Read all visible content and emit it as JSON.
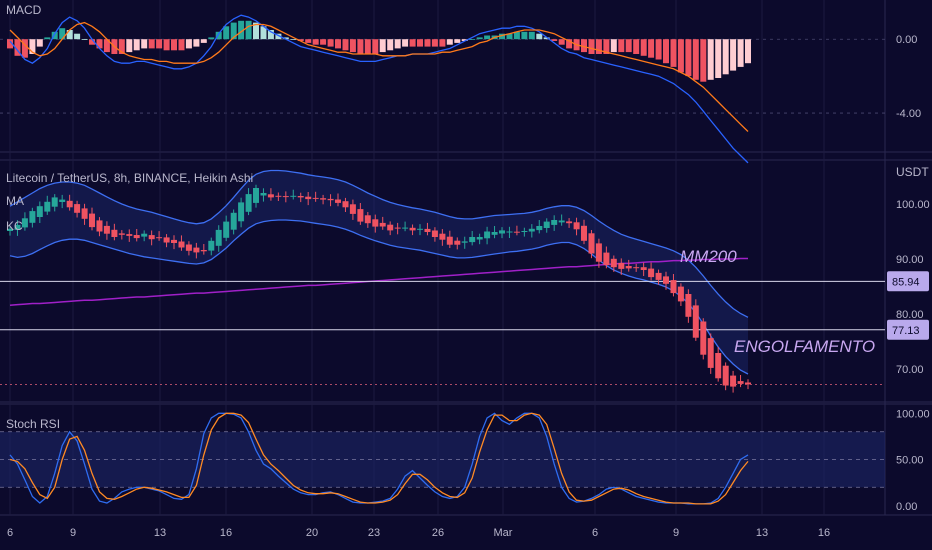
{
  "colors": {
    "background": "#0c0a2c",
    "up": "#26a69a",
    "down": "#ef5361",
    "macd_line": "#2962ff",
    "signal_line": "#ff7a1a",
    "ma200": "#a020c8",
    "keltner": "#3d6ff2",
    "stoch_k": "#2f6cf0",
    "stoch_d": "#ff8a24",
    "annotation": "#c8a7f0",
    "level_label_bg": "#b9a9ec"
  },
  "chart_data": {
    "type": "candlestick",
    "title": "Litecoin / TetherUS, 8h, BINANCE, Heikin Ashi",
    "currency": "USDT",
    "x_ticks": [
      "6",
      "9",
      "13",
      "16",
      "20",
      "23",
      "26",
      "Mar",
      "6",
      "9",
      "13",
      "16"
    ],
    "price_axis": {
      "ticks": [
        100.0,
        90.0,
        80.0,
        70.0
      ],
      "tick_labels": [
        "100.00",
        "90.00",
        "80.00",
        "70.00"
      ],
      "range": [
        64,
        108
      ]
    },
    "indicators_labels": [
      "MA",
      "KC"
    ],
    "horizontal_levels": [
      {
        "value": 85.94,
        "label": "85.94"
      },
      {
        "value": 77.13,
        "label": "77.13"
      }
    ],
    "annotations": [
      "MM200",
      "ENGOLFAMENTO"
    ],
    "candles_close": [
      95.5,
      96.2,
      97.4,
      98.7,
      99.6,
      100.4,
      101.2,
      100.8,
      99.4,
      98.4,
      97.3,
      95.8,
      95.0,
      94.6,
      94.0,
      94.4,
      94.2,
      93.8,
      94.6,
      93.6,
      93.9,
      93.0,
      92.9,
      92.1,
      91.5,
      91.2,
      91.4,
      93.3,
      95.3,
      96.8,
      98.4,
      100.3,
      101.8,
      102.9,
      102.0,
      101.2,
      101.4,
      101.4,
      101.5,
      101.2,
      100.9,
      101.0,
      100.8,
      100.7,
      100.2,
      99.4,
      98.2,
      96.8,
      96.5,
      95.9,
      95.9,
      95.2,
      95.6,
      95.7,
      95.2,
      95.5,
      94.9,
      94.0,
      93.5,
      92.6,
      92.6,
      93.2,
      94.0,
      94.0,
      95.0,
      94.9,
      95.2,
      95.0,
      94.9,
      95.1,
      95.5,
      96.0,
      96.8,
      97.1,
      97.0,
      96.5,
      95.4,
      93.3,
      91.0,
      89.5,
      88.9,
      88.5,
      88.2,
      88.3,
      88.5,
      88.0,
      86.7,
      86.2,
      85.5,
      83.8,
      82.3,
      79.5,
      75.7,
      72.6,
      70.2,
      68.3,
      67.0,
      66.8,
      67.3,
      67.2
    ],
    "keltner_upper": [
      99.6,
      100.4,
      101.2,
      102.0,
      102.8,
      103.4,
      103.8,
      104.0,
      104.0,
      103.8,
      103.4,
      102.7,
      102.0,
      101.3,
      100.6,
      100.0,
      99.5,
      99.1,
      98.8,
      98.5,
      98.1,
      97.7,
      97.3,
      96.9,
      96.6,
      96.4,
      96.6,
      97.3,
      98.4,
      99.7,
      101.2,
      102.8,
      104.3,
      105.4,
      105.9,
      106.1,
      106.1,
      106.0,
      105.8,
      105.6,
      105.3,
      105.1,
      104.9,
      104.7,
      104.4,
      104.0,
      103.4,
      102.7,
      102.0,
      101.4,
      100.8,
      100.3,
      99.9,
      99.6,
      99.3,
      99.1,
      98.8,
      98.5,
      98.1,
      97.7,
      97.4,
      97.3,
      97.3,
      97.5,
      97.7,
      97.9,
      98.0,
      98.1,
      98.2,
      98.3,
      98.5,
      98.8,
      99.2,
      99.5,
      99.7,
      99.7,
      99.4,
      98.8,
      97.9,
      96.9,
      96.0,
      95.2,
      94.5,
      94.0,
      93.6,
      93.2,
      92.8,
      92.4,
      92.0,
      91.5,
      90.8,
      89.8,
      88.5,
      86.9,
      85.2,
      83.6,
      82.2,
      81.0,
      80.1,
      79.4
    ],
    "keltner_lower": [
      90.6,
      90.3,
      90.5,
      91.0,
      91.7,
      92.4,
      93.0,
      93.4,
      93.6,
      93.6,
      93.4,
      93.0,
      92.6,
      92.2,
      91.8,
      91.4,
      91.0,
      90.7,
      90.4,
      90.2,
      90.0,
      89.8,
      89.6,
      89.4,
      89.2,
      89.1,
      89.3,
      89.9,
      90.9,
      92.0,
      93.3,
      94.5,
      95.6,
      96.4,
      96.8,
      97.0,
      97.1,
      97.1,
      97.0,
      96.9,
      96.7,
      96.5,
      96.3,
      96.1,
      95.8,
      95.4,
      94.9,
      94.3,
      93.8,
      93.3,
      92.9,
      92.5,
      92.2,
      92.0,
      91.8,
      91.6,
      91.3,
      91.0,
      90.7,
      90.4,
      90.2,
      90.2,
      90.3,
      90.5,
      90.7,
      90.9,
      91.1,
      91.3,
      91.4,
      91.6,
      91.8,
      92.1,
      92.5,
      92.8,
      93.0,
      93.0,
      92.6,
      91.9,
      90.9,
      89.8,
      88.8,
      88.0,
      87.4,
      86.9,
      86.5,
      86.2,
      85.8,
      85.4,
      84.9,
      84.2,
      83.2,
      81.9,
      80.2,
      78.2,
      76.0,
      74.0,
      72.3,
      70.9,
      69.8,
      69.1
    ],
    "ma200": [
      81.6,
      81.7,
      81.8,
      81.9,
      81.9,
      82.0,
      82.1,
      82.2,
      82.3,
      82.4,
      82.5,
      82.5,
      82.6,
      82.7,
      82.8,
      82.9,
      83.0,
      83.1,
      83.1,
      83.2,
      83.3,
      83.4,
      83.5,
      83.6,
      83.7,
      83.8,
      83.8,
      83.9,
      84.0,
      84.1,
      84.2,
      84.3,
      84.4,
      84.5,
      84.6,
      84.7,
      84.8,
      84.9,
      85.0,
      85.1,
      85.2,
      85.2,
      85.3,
      85.4,
      85.5,
      85.6,
      85.7,
      85.8,
      85.9,
      86.0,
      86.1,
      86.2,
      86.3,
      86.4,
      86.5,
      86.6,
      86.7,
      86.8,
      86.9,
      87.0,
      87.1,
      87.2,
      87.3,
      87.4,
      87.5,
      87.6,
      87.7,
      87.8,
      87.9,
      88.0,
      88.1,
      88.2,
      88.3,
      88.4,
      88.5,
      88.6,
      88.6,
      88.7,
      88.8,
      88.9,
      89.0,
      89.1,
      89.2,
      89.2,
      89.3,
      89.4,
      89.5,
      89.5,
      89.6,
      89.7,
      89.7,
      89.8,
      89.8,
      89.9,
      89.9,
      90.0,
      90.0,
      90.0,
      90.1,
      90.1
    ],
    "macd": {
      "label": "MACD",
      "ticks": [
        0.0,
        -4.0
      ],
      "tick_labels": [
        "0.00",
        "-4.00"
      ],
      "range": [
        -6.0,
        1.8
      ],
      "histogram": [
        -0.5,
        -0.9,
        -1.0,
        -0.8,
        -0.4,
        0.1,
        0.4,
        0.6,
        0.5,
        0.3,
        0.0,
        -0.3,
        -0.5,
        -0.7,
        -0.8,
        -0.8,
        -0.7,
        -0.6,
        -0.5,
        -0.5,
        -0.5,
        -0.6,
        -0.6,
        -0.6,
        -0.5,
        -0.4,
        -0.2,
        0.1,
        0.4,
        0.7,
        0.9,
        1.0,
        1.0,
        0.9,
        0.7,
        0.5,
        0.3,
        0.1,
        0.0,
        -0.1,
        -0.2,
        -0.3,
        -0.3,
        -0.4,
        -0.5,
        -0.6,
        -0.7,
        -0.8,
        -0.8,
        -0.8,
        -0.7,
        -0.6,
        -0.5,
        -0.4,
        -0.4,
        -0.4,
        -0.4,
        -0.4,
        -0.4,
        -0.3,
        -0.2,
        -0.1,
        0.0,
        0.1,
        0.2,
        0.2,
        0.3,
        0.3,
        0.4,
        0.4,
        0.4,
        0.3,
        0.1,
        -0.1,
        -0.3,
        -0.5,
        -0.6,
        -0.7,
        -0.8,
        -0.8,
        -0.8,
        -0.7,
        -0.7,
        -0.7,
        -0.8,
        -0.9,
        -1.0,
        -1.1,
        -1.3,
        -1.5,
        -1.8,
        -2.0,
        -2.2,
        -2.3,
        -2.2,
        -2.1,
        -1.9,
        -1.7,
        -1.5,
        -1.3
      ],
      "macd_line": [
        -0.1,
        -0.6,
        -1.1,
        -1.3,
        -1.0,
        -0.5,
        0.3,
        0.9,
        1.2,
        1.0,
        0.6,
        0.0,
        -0.5,
        -0.9,
        -1.2,
        -1.3,
        -1.3,
        -1.2,
        -1.2,
        -1.3,
        -1.4,
        -1.5,
        -1.6,
        -1.6,
        -1.5,
        -1.3,
        -0.9,
        -0.4,
        0.3,
        0.8,
        1.1,
        1.3,
        1.2,
        1.0,
        0.7,
        0.4,
        0.2,
        0.0,
        -0.2,
        -0.4,
        -0.5,
        -0.6,
        -0.7,
        -0.8,
        -0.9,
        -1.0,
        -1.1,
        -1.2,
        -1.2,
        -1.2,
        -1.1,
        -1.0,
        -0.9,
        -0.9,
        -0.8,
        -0.8,
        -0.8,
        -0.7,
        -0.6,
        -0.5,
        -0.3,
        -0.1,
        0.1,
        0.3,
        0.4,
        0.5,
        0.6,
        0.6,
        0.7,
        0.7,
        0.6,
        0.4,
        0.1,
        -0.2,
        -0.5,
        -0.7,
        -0.8,
        -1.0,
        -1.1,
        -1.2,
        -1.3,
        -1.4,
        -1.5,
        -1.6,
        -1.7,
        -1.8,
        -1.9,
        -2.0,
        -2.2,
        -2.4,
        -2.7,
        -3.0,
        -3.4,
        -3.9,
        -4.4,
        -4.9,
        -5.4,
        -5.9,
        -6.3,
        -6.7
      ],
      "signal_line": [
        0.5,
        0.1,
        -0.3,
        -0.7,
        -0.9,
        -0.8,
        -0.5,
        0.0,
        0.5,
        0.8,
        0.9,
        0.7,
        0.4,
        0.0,
        -0.4,
        -0.7,
        -0.9,
        -1.0,
        -1.1,
        -1.1,
        -1.2,
        -1.2,
        -1.3,
        -1.3,
        -1.3,
        -1.3,
        -1.2,
        -1.0,
        -0.7,
        -0.3,
        0.1,
        0.4,
        0.7,
        0.8,
        0.8,
        0.7,
        0.5,
        0.3,
        0.1,
        -0.1,
        -0.3,
        -0.4,
        -0.5,
        -0.6,
        -0.7,
        -0.7,
        -0.8,
        -0.8,
        -0.8,
        -0.8,
        -0.9,
        -0.9,
        -0.9,
        -0.9,
        -0.8,
        -0.8,
        -0.8,
        -0.8,
        -0.7,
        -0.7,
        -0.6,
        -0.5,
        -0.4,
        -0.2,
        -0.1,
        0.1,
        0.2,
        0.3,
        0.4,
        0.5,
        0.5,
        0.5,
        0.4,
        0.3,
        0.1,
        -0.1,
        -0.3,
        -0.4,
        -0.5,
        -0.6,
        -0.7,
        -0.8,
        -0.9,
        -1.0,
        -1.1,
        -1.2,
        -1.3,
        -1.4,
        -1.5,
        -1.6,
        -1.8,
        -2.0,
        -2.3,
        -2.6,
        -3.0,
        -3.4,
        -3.8,
        -4.2,
        -4.6,
        -5.0
      ]
    },
    "stoch_rsi": {
      "label": "Stoch RSI",
      "ticks": [
        100.0,
        50.0,
        0.0
      ],
      "tick_labels": [
        "100.00",
        "50.00",
        "0.00"
      ],
      "band": [
        20,
        80
      ],
      "range": [
        -10,
        110
      ],
      "k": [
        55,
        45,
        28,
        10,
        3,
        10,
        35,
        65,
        80,
        70,
        45,
        18,
        5,
        3,
        8,
        15,
        18,
        20,
        20,
        18,
        16,
        12,
        8,
        7,
        12,
        40,
        78,
        95,
        100,
        100,
        99,
        95,
        80,
        60,
        45,
        40,
        32,
        25,
        18,
        14,
        12,
        12,
        14,
        15,
        12,
        8,
        4,
        3,
        3,
        4,
        5,
        8,
        18,
        32,
        38,
        30,
        22,
        15,
        10,
        8,
        10,
        20,
        45,
        75,
        95,
        100,
        92,
        88,
        95,
        100,
        100,
        95,
        75,
        45,
        20,
        8,
        4,
        5,
        8,
        12,
        18,
        20,
        18,
        14,
        10,
        8,
        6,
        4,
        3,
        3,
        3,
        2,
        2,
        2,
        3,
        8,
        20,
        35,
        50,
        55
      ],
      "d": [
        50,
        48,
        40,
        25,
        12,
        8,
        20,
        50,
        72,
        75,
        60,
        35,
        15,
        8,
        7,
        10,
        14,
        18,
        20,
        19,
        17,
        15,
        12,
        9,
        9,
        22,
        55,
        82,
        95,
        100,
        100,
        98,
        90,
        72,
        55,
        45,
        38,
        30,
        22,
        17,
        14,
        13,
        13,
        14,
        13,
        10,
        7,
        4,
        3,
        3,
        4,
        6,
        12,
        24,
        34,
        34,
        28,
        20,
        14,
        10,
        9,
        14,
        30,
        58,
        82,
        98,
        98,
        92,
        92,
        98,
        100,
        98,
        88,
        62,
        35,
        15,
        6,
        5,
        6,
        10,
        14,
        18,
        19,
        17,
        13,
        10,
        8,
        6,
        4,
        3,
        3,
        3,
        2,
        2,
        2,
        5,
        12,
        25,
        38,
        48
      ]
    }
  }
}
